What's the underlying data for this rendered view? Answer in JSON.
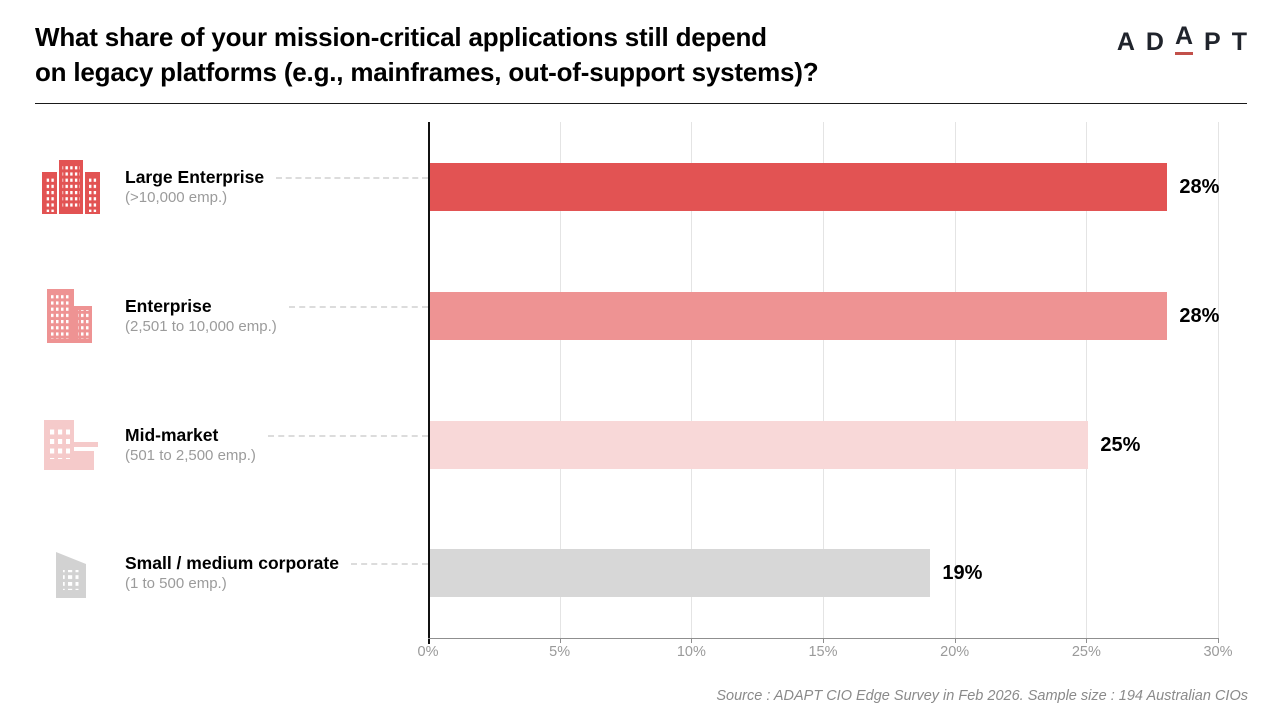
{
  "header": {
    "title_line1": "What share of your mission-critical applications still depend",
    "title_line2": "on legacy platforms (e.g., mainframes, out-of-support systems)?",
    "logo_letters": [
      "A",
      "D",
      "A",
      "P",
      "T"
    ]
  },
  "chart_data": {
    "type": "bar",
    "orientation": "horizontal",
    "title": "What share of your mission-critical applications still depend on legacy platforms (e.g., mainframes, out-of-support systems)?",
    "categories": [
      "Large Enterprise",
      "Enterprise",
      "Mid-market",
      "Small / medium corporate"
    ],
    "category_sublabels": [
      "(>10,000 emp.)",
      "(2,501 to 10,000 emp.)",
      "(501 to 2,500 emp.)",
      "(1 to 500 emp.)"
    ],
    "values": [
      28,
      28,
      25,
      19
    ],
    "value_labels": [
      "28%",
      "28%",
      "25%",
      "19%"
    ],
    "bar_colors": [
      "#e25353",
      "#ee9393",
      "#f8d8d8",
      "#d7d7d7"
    ],
    "icon_colors": [
      "#e25353",
      "#ee9393",
      "#f5caca",
      "#d2d2d2"
    ],
    "icons": [
      "large-city-building-icon",
      "twin-towers-building-icon",
      "building-with-annex-icon",
      "small-building-icon"
    ],
    "xlim": [
      0,
      30
    ],
    "x_ticks": [
      "0%",
      "5%",
      "10%",
      "15%",
      "20%",
      "25%",
      "30%"
    ],
    "grid": true,
    "legend": false
  },
  "footer": {
    "source": "Source : ADAPT CIO Edge Survey in Feb 2026. Sample size : 194 Australian CIOs"
  },
  "colors": {
    "accent_red": "#e25353",
    "logo_text": "#20242c",
    "logo_underline": "#c2504a",
    "axis_label": "#9a9a9a",
    "gridline": "#e4e4e4",
    "sublabel": "#9b9b9b"
  }
}
